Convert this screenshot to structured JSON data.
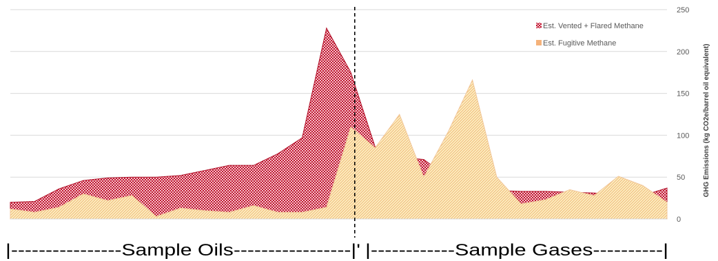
{
  "chart_data": {
    "type": "area",
    "title": "",
    "xlabel": "",
    "ylabel": "GHG Emissions (kg CO2e/barrel oil equivalent)",
    "ylim": [
      0,
      250
    ],
    "yticks": [
      0,
      50,
      100,
      150,
      200,
      250
    ],
    "grid": true,
    "y_axis_side": "right",
    "legend_position": "top-right",
    "stacked": false,
    "x": [
      0,
      1,
      2,
      3,
      4,
      5,
      6,
      7,
      8,
      9,
      10,
      11,
      12,
      13,
      14,
      15,
      16,
      17,
      18,
      19,
      20,
      21,
      22,
      23,
      24,
      25,
      26,
      27
    ],
    "series": [
      {
        "name": "Est. Vented + Flared Methane",
        "color": "#c0152f",
        "pattern": "checkered",
        "values": [
          20,
          21,
          36,
          46,
          49,
          50,
          50,
          52,
          58,
          64,
          64,
          78,
          97,
          228,
          175,
          86,
          74,
          71,
          50,
          44,
          34,
          33,
          33,
          32,
          31,
          29,
          28,
          37
        ]
      },
      {
        "name": "Est. Fugitive Methane",
        "color": "#f5b27a",
        "pattern": "diagonal",
        "values": [
          12,
          8,
          14,
          30,
          22,
          28,
          3,
          13,
          10,
          8,
          16,
          8,
          8,
          14,
          110,
          85,
          125,
          50,
          104,
          166,
          50,
          18,
          23,
          35,
          28,
          51,
          40,
          20
        ]
      }
    ],
    "divider_between_index": [
      14,
      15
    ],
    "section_labels": {
      "oils": "|----------------Sample Oils-----------------|'",
      "gases": "|------------Sample Gases----------|"
    }
  }
}
